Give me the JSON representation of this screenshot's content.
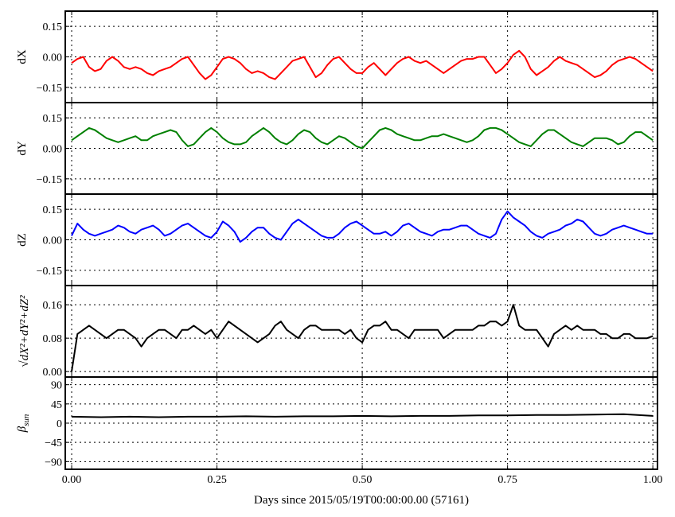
{
  "chart_data": {
    "type": "line",
    "xlabel": "Days since 2015/05/19T00:00:00.00 (57161)",
    "xlim": [
      -0.011,
      1.008
    ],
    "xticks": [
      0.0,
      0.25,
      0.5,
      0.75,
      1.0
    ],
    "xtick_labels": [
      "0.00",
      "0.25",
      "0.50",
      "0.75",
      "1.00"
    ],
    "grid": true,
    "panels": [
      {
        "id": "dx",
        "ylabel": {
          "main": "dX",
          "sub": ""
        },
        "ylim": [
          -0.225,
          0.225
        ],
        "yticks": [
          0.15,
          0.0,
          -0.15
        ],
        "ytick_labels": [
          "0.15",
          "0.00",
          "−0.15"
        ],
        "color": "#ff0000",
        "x_start": 0.0,
        "x_step": 0.01,
        "values": [
          -0.03,
          -0.01,
          0.0,
          -0.05,
          -0.07,
          -0.06,
          -0.02,
          0.0,
          -0.02,
          -0.05,
          -0.06,
          -0.05,
          -0.06,
          -0.08,
          -0.09,
          -0.07,
          -0.06,
          -0.05,
          -0.03,
          -0.01,
          0.0,
          -0.04,
          -0.08,
          -0.11,
          -0.09,
          -0.05,
          -0.01,
          0.0,
          -0.01,
          -0.03,
          -0.06,
          -0.08,
          -0.07,
          -0.08,
          -0.1,
          -0.11,
          -0.08,
          -0.05,
          -0.02,
          -0.01,
          0.0,
          -0.05,
          -0.1,
          -0.08,
          -0.04,
          -0.01,
          0.0,
          -0.03,
          -0.06,
          -0.08,
          -0.08,
          -0.05,
          -0.03,
          -0.06,
          -0.09,
          -0.06,
          -0.03,
          -0.01,
          0.0,
          -0.02,
          -0.03,
          -0.02,
          -0.04,
          -0.06,
          -0.08,
          -0.06,
          -0.04,
          -0.02,
          -0.01,
          -0.01,
          0.0,
          0.0,
          -0.04,
          -0.08,
          -0.06,
          -0.03,
          0.01,
          0.03,
          0.0,
          -0.06,
          -0.09,
          -0.07,
          -0.05,
          -0.02,
          0.0,
          -0.02,
          -0.03,
          -0.04,
          -0.06,
          -0.08,
          -0.1,
          -0.09,
          -0.07,
          -0.04,
          -0.02,
          -0.01,
          0.0,
          -0.01,
          -0.03,
          -0.05,
          -0.07
        ]
      },
      {
        "id": "dy",
        "ylabel": {
          "main": "dY",
          "sub": ""
        },
        "ylim": [
          -0.225,
          0.225
        ],
        "yticks": [
          0.15,
          0.0,
          -0.15
        ],
        "ytick_labels": [
          "0.15",
          "0.00",
          "−0.15"
        ],
        "color": "#008000",
        "x_start": 0.0,
        "x_step": 0.01,
        "values": [
          0.04,
          0.06,
          0.08,
          0.1,
          0.09,
          0.07,
          0.05,
          0.04,
          0.03,
          0.04,
          0.05,
          0.06,
          0.04,
          0.04,
          0.06,
          0.07,
          0.08,
          0.09,
          0.08,
          0.04,
          0.01,
          0.02,
          0.05,
          0.08,
          0.1,
          0.08,
          0.05,
          0.03,
          0.02,
          0.02,
          0.03,
          0.06,
          0.08,
          0.1,
          0.08,
          0.05,
          0.03,
          0.02,
          0.04,
          0.07,
          0.09,
          0.08,
          0.05,
          0.03,
          0.02,
          0.04,
          0.06,
          0.05,
          0.03,
          0.01,
          0.0,
          0.03,
          0.06,
          0.09,
          0.1,
          0.09,
          0.07,
          0.06,
          0.05,
          0.04,
          0.04,
          0.05,
          0.06,
          0.06,
          0.07,
          0.06,
          0.05,
          0.04,
          0.03,
          0.04,
          0.06,
          0.09,
          0.1,
          0.1,
          0.09,
          0.07,
          0.05,
          0.03,
          0.02,
          0.01,
          0.04,
          0.07,
          0.09,
          0.09,
          0.07,
          0.05,
          0.03,
          0.02,
          0.01,
          0.03,
          0.05,
          0.05,
          0.05,
          0.04,
          0.02,
          0.03,
          0.06,
          0.08,
          0.08,
          0.06,
          0.04
        ]
      },
      {
        "id": "dz",
        "ylabel": {
          "main": "dZ",
          "sub": ""
        },
        "ylim": [
          -0.225,
          0.225
        ],
        "yticks": [
          0.15,
          0.0,
          -0.15
        ],
        "ytick_labels": [
          "0.15",
          "0.00",
          "−0.15"
        ],
        "color": "#0000ff",
        "x_start": 0.0,
        "x_step": 0.01,
        "values": [
          0.02,
          0.08,
          0.05,
          0.03,
          0.02,
          0.03,
          0.04,
          0.05,
          0.07,
          0.06,
          0.04,
          0.03,
          0.05,
          0.06,
          0.07,
          0.05,
          0.02,
          0.03,
          0.05,
          0.07,
          0.08,
          0.06,
          0.04,
          0.02,
          0.01,
          0.04,
          0.09,
          0.07,
          0.04,
          -0.01,
          0.01,
          0.04,
          0.06,
          0.06,
          0.03,
          0.01,
          0.0,
          0.04,
          0.08,
          0.1,
          0.08,
          0.06,
          0.04,
          0.02,
          0.01,
          0.01,
          0.03,
          0.06,
          0.08,
          0.09,
          0.07,
          0.05,
          0.03,
          0.03,
          0.04,
          0.02,
          0.04,
          0.07,
          0.08,
          0.06,
          0.04,
          0.03,
          0.02,
          0.04,
          0.05,
          0.05,
          0.06,
          0.07,
          0.07,
          0.05,
          0.03,
          0.02,
          0.01,
          0.03,
          0.1,
          0.14,
          0.11,
          0.09,
          0.07,
          0.04,
          0.02,
          0.01,
          0.03,
          0.04,
          0.05,
          0.07,
          0.08,
          0.1,
          0.09,
          0.06,
          0.03,
          0.02,
          0.03,
          0.05,
          0.06,
          0.07,
          0.06,
          0.05,
          0.04,
          0.03,
          0.03
        ]
      },
      {
        "id": "magnitude",
        "ylabel": {
          "main": "√dX²+dY²+dZ²",
          "sub": ""
        },
        "ylim": [
          -0.013,
          0.206
        ],
        "yticks": [
          0.16,
          0.08,
          0.0
        ],
        "ytick_labels": [
          "0.16",
          "0.08",
          "0.00"
        ],
        "color": "#000000",
        "x_start": 0.0,
        "x_step": 0.01,
        "values": [
          0,
          0.09,
          0.1,
          0.11,
          0.1,
          0.09,
          0.08,
          0.09,
          0.1,
          0.1,
          0.09,
          0.08,
          0.06,
          0.08,
          0.09,
          0.1,
          0.1,
          0.09,
          0.08,
          0.1,
          0.1,
          0.11,
          0.1,
          0.09,
          0.1,
          0.08,
          0.1,
          0.12,
          0.11,
          0.1,
          0.09,
          0.08,
          0.07,
          0.08,
          0.09,
          0.11,
          0.12,
          0.1,
          0.09,
          0.08,
          0.1,
          0.11,
          0.11,
          0.1,
          0.1,
          0.1,
          0.1,
          0.09,
          0.1,
          0.08,
          0.07,
          0.1,
          0.11,
          0.11,
          0.12,
          0.1,
          0.1,
          0.09,
          0.08,
          0.1,
          0.1,
          0.1,
          0.1,
          0.1,
          0.08,
          0.09,
          0.1,
          0.1,
          0.1,
          0.1,
          0.11,
          0.11,
          0.12,
          0.12,
          0.11,
          0.12,
          0.16,
          0.11,
          0.1,
          0.1,
          0.1,
          0.08,
          0.06,
          0.09,
          0.1,
          0.11,
          0.1,
          0.11,
          0.1,
          0.1,
          0.1,
          0.09,
          0.09,
          0.08,
          0.08,
          0.09,
          0.09,
          0.08,
          0.08,
          0.08,
          0.085
        ]
      },
      {
        "id": "beta-sun",
        "ylabel": {
          "main": "β",
          "sub": "sun"
        },
        "ylim": [
          -108,
          108
        ],
        "yticks": [
          90,
          45,
          0,
          -45,
          -90
        ],
        "ytick_labels": [
          "90",
          "45",
          "0",
          "−45",
          "−90"
        ],
        "color": "#000000",
        "x_start": 0.0,
        "x_step": 0.05,
        "values": [
          15,
          14,
          15,
          14,
          15,
          15,
          16,
          15,
          16,
          16,
          17,
          16,
          17,
          17,
          18,
          18,
          19,
          19,
          20,
          21,
          17
        ]
      }
    ]
  }
}
